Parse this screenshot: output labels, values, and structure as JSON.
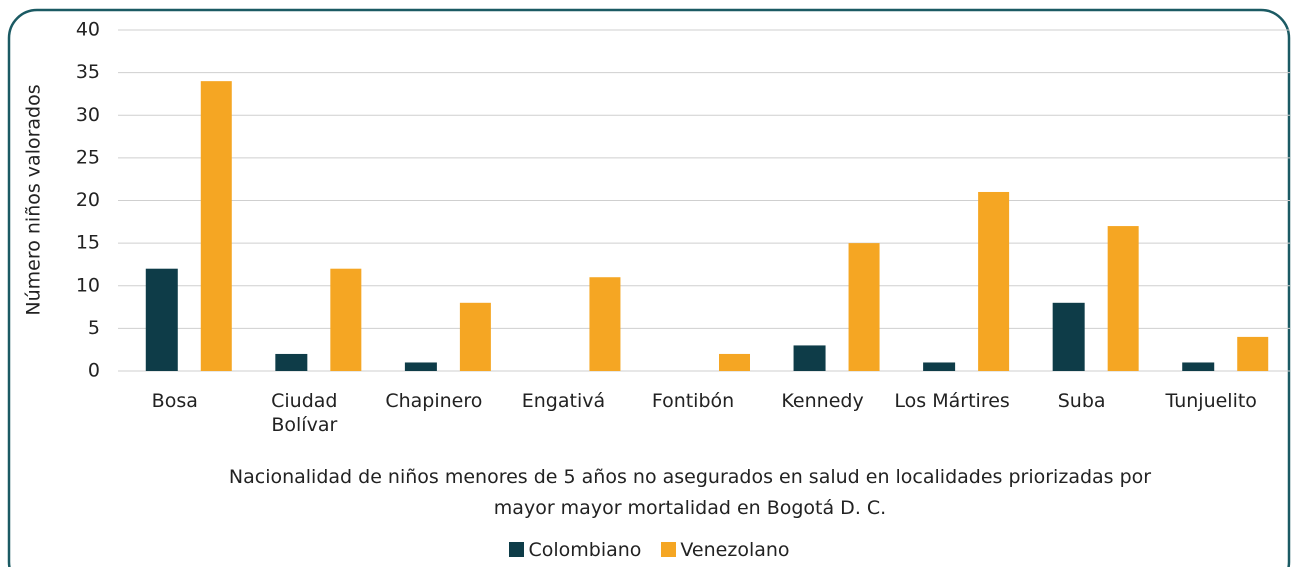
{
  "chart_data": {
    "type": "bar",
    "y_label": "Número niños valorados",
    "x_label": "Nacionalidad de niños menores de 5 años no asegurados en salud en localidades priorizadas por mayor mayor mortalidad en Bogotá D. C.",
    "categories": [
      "Bosa",
      "Ciudad Bolívar",
      "Chapinero",
      "Engativá",
      "Fontibón",
      "Kennedy",
      "Los Mártires",
      "Suba",
      "Tunjuelito"
    ],
    "series": [
      {
        "name": "Colombiano",
        "color": "#0e3c48",
        "values": [
          12,
          2,
          1,
          0,
          0,
          3,
          1,
          8,
          1
        ]
      },
      {
        "name": "Venezolano",
        "color": "#f5a623",
        "values": [
          34,
          12,
          8,
          11,
          2,
          15,
          21,
          17,
          4
        ]
      }
    ],
    "ylim": [
      0,
      40
    ],
    "yticks": [
      0,
      5,
      10,
      15,
      20,
      25,
      30,
      35,
      40
    ],
    "grid": true,
    "legend": "bottom"
  }
}
